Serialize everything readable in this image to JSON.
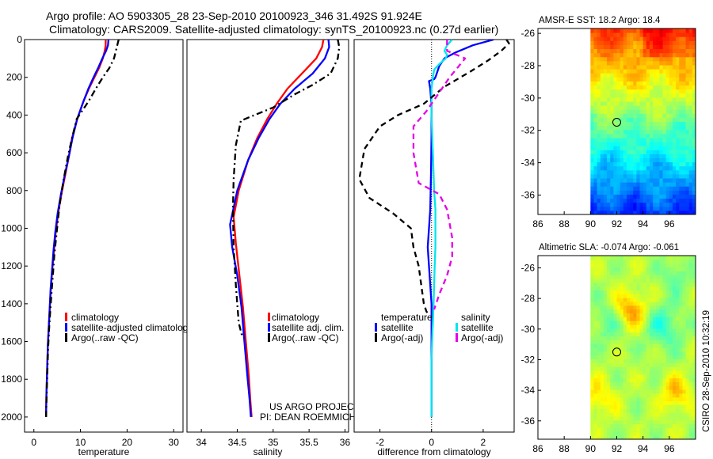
{
  "header": {
    "line1": "Argo profile: AO 5903305_28 23-Sep-2010 20100923_346 31.492S 91.924E",
    "line2": "Climatology: CARS2009. Satellite-adjusted climatology: synTS_20100923.nc (0.27d earlier)"
  },
  "colors": {
    "climatology": "#ff0000",
    "satellite": "#0000ff",
    "argo": "#000000",
    "satellite_sal": "#00e5ee",
    "argo_sal": "#e600e6"
  },
  "chart_data": [
    {
      "type": "line",
      "id": "temperature",
      "title": "",
      "xlabel": "temperature",
      "ylabel": "",
      "xlim": [
        -2,
        32
      ],
      "ylim": [
        2080,
        0
      ],
      "xticks": [
        "0",
        "10",
        "20",
        "30"
      ],
      "yticks": [
        "0",
        "200",
        "400",
        "600",
        "800",
        "1000",
        "1200",
        "1400",
        "1600",
        "1800",
        "2000"
      ],
      "legend": [
        "climatology",
        "satellite-adjusted climatolog",
        "Argo(..raw -QC)"
      ],
      "series": [
        {
          "name": "climatology",
          "color": "#ff0000",
          "style": "solid",
          "x": [
            15.4,
            15.4,
            15.2,
            14.8,
            14.0,
            13.0,
            11.8,
            10.6,
            9.3,
            8.2,
            7.5,
            6.7,
            5.9,
            5.2,
            4.7,
            4.3,
            3.95,
            3.65,
            3.4,
            3.2,
            3.0,
            2.85,
            2.7,
            2.6
          ],
          "y": [
            0,
            30,
            60,
            100,
            150,
            200,
            260,
            330,
            420,
            520,
            620,
            720,
            820,
            920,
            1020,
            1120,
            1220,
            1320,
            1420,
            1520,
            1620,
            1750,
            1880,
            2000
          ]
        },
        {
          "name": "satellite-adjusted climatology",
          "color": "#0000ff",
          "style": "solid",
          "x": [
            16.0,
            15.9,
            15.5,
            14.7,
            13.8,
            12.8,
            11.7,
            10.6,
            9.3,
            8.3,
            7.5,
            6.6,
            5.8,
            5.1,
            4.6,
            4.2,
            3.9,
            3.6,
            3.4,
            3.2,
            3.0,
            2.85,
            2.7,
            2.6
          ],
          "y": [
            0,
            30,
            60,
            100,
            150,
            200,
            260,
            330,
            420,
            520,
            620,
            720,
            820,
            920,
            1020,
            1120,
            1220,
            1320,
            1420,
            1520,
            1620,
            1750,
            1880,
            2000
          ]
        },
        {
          "name": "Argo(..raw -QC)",
          "color": "#000000",
          "style": "dashdot",
          "x": [
            18.2,
            18.0,
            17.6,
            17.2,
            16.2,
            14.8,
            13.3,
            11.9,
            10.6,
            9.2,
            8.2,
            7.3,
            6.4,
            5.5,
            4.9,
            4.4,
            4.1,
            3.8,
            3.5,
            3.25,
            3.05,
            2.9,
            2.75,
            2.6
          ],
          "y": [
            0,
            20,
            60,
            100,
            150,
            200,
            260,
            320,
            370,
            420,
            520,
            620,
            740,
            880,
            1020,
            1140,
            1240,
            1340,
            1440,
            1540,
            1640,
            1760,
            1880,
            2000
          ]
        }
      ]
    },
    {
      "type": "line",
      "id": "salinity",
      "title": "",
      "xlabel": "salinity",
      "ylabel": "",
      "xlim": [
        33.8,
        36.05
      ],
      "ylim": [
        2080,
        0
      ],
      "xticks": [
        "34",
        "34.5",
        "35",
        "35.5",
        "36"
      ],
      "legend": [
        "climatology",
        "satellite adj. clim.",
        "Argo(..raw -QC)"
      ],
      "annotations": [
        "US ARGO PROJECT",
        "PI: DEAN ROEMMICH"
      ],
      "series": [
        {
          "name": "climatology",
          "color": "#ff0000",
          "style": "solid",
          "x": [
            35.7,
            35.68,
            35.6,
            35.4,
            35.2,
            35.05,
            34.92,
            34.78,
            34.65,
            34.52,
            34.45,
            34.48,
            34.53,
            34.58,
            34.62,
            34.66,
            34.68,
            34.7
          ],
          "y": [
            0,
            40,
            100,
            180,
            260,
            340,
            420,
            520,
            640,
            800,
            940,
            1080,
            1250,
            1420,
            1600,
            1780,
            1900,
            2000
          ]
        },
        {
          "name": "satellite adj. clim.",
          "color": "#0000ff",
          "style": "solid",
          "x": [
            35.77,
            35.78,
            35.72,
            35.55,
            35.3,
            35.1,
            34.95,
            34.8,
            34.65,
            34.5,
            34.4,
            34.43,
            34.5,
            34.56,
            34.6,
            34.64,
            34.67,
            34.69
          ],
          "y": [
            0,
            40,
            100,
            180,
            260,
            340,
            420,
            520,
            640,
            800,
            980,
            1100,
            1250,
            1420,
            1600,
            1780,
            1900,
            2000
          ]
        },
        {
          "name": "Argo(..raw -QC)",
          "color": "#000000",
          "style": "dashdot",
          "x": [
            35.9,
            35.92,
            35.9,
            35.8,
            35.55,
            35.3,
            35.0,
            34.55,
            34.48,
            34.45,
            34.44,
            34.45,
            34.48,
            34.52,
            34.56,
            34.6
          ],
          "y": [
            0,
            40,
            100,
            180,
            240,
            290,
            360,
            430,
            560,
            740,
            900,
            1100,
            1300,
            1500,
            1560,
            1580
          ]
        }
      ]
    },
    {
      "type": "line",
      "id": "difference",
      "title": "",
      "xlabel": "difference from climatology",
      "ylabel": "",
      "xlim": [
        -3.0,
        3.2
      ],
      "ylim": [
        2080,
        0
      ],
      "xticks": [
        "-2",
        "0",
        "2"
      ],
      "legend_groups": [
        {
          "heading": "temperature",
          "entries": [
            "satellite",
            "Argo(-adj)"
          ]
        },
        {
          "heading": "salinity",
          "entries": [
            "satellite",
            "Argo(-adj)"
          ]
        }
      ],
      "series": [
        {
          "name": "temperature satellite",
          "color": "#0000ff",
          "style": "solid",
          "x": [
            2.4,
            1.6,
            0.9,
            0.5,
            0.3,
            0.2,
            0.15,
            0.1,
            -0.1,
            -0.05,
            0.0,
            0.0,
            -0.02,
            -0.05,
            -0.1,
            -0.15,
            -0.1,
            -0.05,
            0.0,
            0.0,
            0.0,
            0.0,
            0.0,
            0.0
          ],
          "y": [
            0,
            30,
            70,
            100,
            140,
            180,
            200,
            210,
            220,
            260,
            350,
            500,
            700,
            900,
            1000,
            1100,
            1200,
            1300,
            1400,
            1500,
            1600,
            1750,
            1900,
            2000
          ]
        },
        {
          "name": "salinity satellite",
          "color": "#00e5ee",
          "style": "solid",
          "x": [
            0.8,
            0.6,
            0.5,
            0.6,
            0.55,
            0.3,
            0.1,
            0.05,
            0.0,
            0.0,
            0.05,
            0.1,
            0.15,
            0.15,
            0.15,
            0.12,
            0.1,
            0.08,
            0.05,
            0.02,
            0.0,
            0.0,
            0.0,
            0.0
          ],
          "y": [
            0,
            30,
            60,
            80,
            100,
            130,
            160,
            200,
            260,
            400,
            600,
            800,
            900,
            1000,
            1100,
            1200,
            1300,
            1400,
            1500,
            1600,
            1700,
            1800,
            1900,
            2000
          ]
        },
        {
          "name": "temperature Argo(-adj)",
          "color": "#000000",
          "style": "dashed",
          "x": [
            2.9,
            3.0,
            2.7,
            2.2,
            1.5,
            0.5,
            -0.3,
            -1.3,
            -2.0,
            -2.6,
            -2.8,
            -2.4,
            -1.5,
            -0.8,
            -0.7,
            -0.5,
            -0.4,
            -0.3,
            -0.2,
            -0.1
          ],
          "y": [
            0,
            20,
            60,
            110,
            170,
            250,
            340,
            400,
            460,
            580,
            740,
            840,
            920,
            1000,
            1100,
            1200,
            1300,
            1400,
            1440,
            1460
          ]
        },
        {
          "name": "salinity Argo(-adj)",
          "color": "#e600e6",
          "style": "dashed",
          "x": [
            0.6,
            0.6,
            1.3,
            1.0,
            0.7,
            0.3,
            -0.2,
            -0.7,
            -0.7,
            -0.5,
            0.3,
            0.6,
            0.8,
            0.8,
            0.6,
            0.3,
            0.1
          ],
          "y": [
            0,
            60,
            100,
            150,
            200,
            280,
            380,
            460,
            600,
            760,
            820,
            900,
            1050,
            1150,
            1250,
            1350,
            1430
          ]
        }
      ]
    },
    {
      "type": "heatmap",
      "id": "sst",
      "title": "AMSR-E SST: 18.2 Argo: 18.4",
      "xlim": [
        86,
        98
      ],
      "ylim": [
        -37.2,
        -25.7
      ],
      "xticks": [
        "86",
        "88",
        "90",
        "92",
        "94",
        "96"
      ],
      "yticks": [
        "-26",
        "-28",
        "-30",
        "-32",
        "-34",
        "-36"
      ],
      "data_lon_range": [
        90,
        98
      ],
      "marker": {
        "lon": 92.0,
        "lat": -31.5
      }
    },
    {
      "type": "heatmap",
      "id": "sla",
      "title": "Altimetric SLA: -0.074 Argo: -0.061",
      "xlim": [
        86,
        98
      ],
      "ylim": [
        -37.2,
        -25.2
      ],
      "xticks": [
        "86",
        "88",
        "90",
        "92",
        "94",
        "96"
      ],
      "yticks": [
        "-26",
        "-28",
        "-30",
        "-32",
        "-34",
        "-36"
      ],
      "data_lon_range": [
        90,
        98
      ],
      "marker": {
        "lon": 92.0,
        "lat": -31.5
      }
    }
  ],
  "footer": {
    "stamp": "CSIRO 28-Sep-2010 10:32:19"
  }
}
